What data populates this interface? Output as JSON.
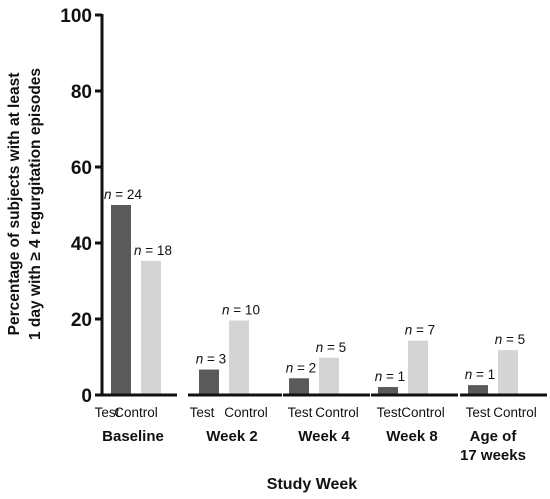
{
  "chart_data": {
    "type": "bar",
    "title": "",
    "xlabel": "Study Week",
    "ylabel_line1": "Percentage of subjects with at least",
    "ylabel_line2": "1 day with ≥ 4 regurgitation episodes",
    "ylim": [
      0,
      100
    ],
    "yticks": [
      "0",
      "20",
      "40",
      "60",
      "80",
      "100"
    ],
    "categories": [
      "Baseline",
      "Week 2",
      "Week 4",
      "Week 8",
      "Age of\n17 weeks"
    ],
    "category_lines": [
      [
        "Baseline"
      ],
      [
        "Week 2"
      ],
      [
        "Week 4"
      ],
      [
        "Week 8"
      ],
      [
        "Age of",
        "17 weeks"
      ]
    ],
    "series": [
      {
        "name": "Test",
        "color": "#5a5a5a",
        "values": [
          50,
          6.7,
          4.4,
          2.1,
          2.6
        ],
        "n": [
          "24",
          "3",
          "2",
          "1",
          "1"
        ]
      },
      {
        "name": "Control",
        "color": "#d4d4d4",
        "values": [
          35.3,
          19.6,
          9.8,
          14.3,
          11.8
        ],
        "n": [
          "18",
          "10",
          "5",
          "7",
          "5"
        ]
      }
    ],
    "n_prefix": "n",
    "n_sep": " = ",
    "grid": false,
    "legend": "none"
  }
}
